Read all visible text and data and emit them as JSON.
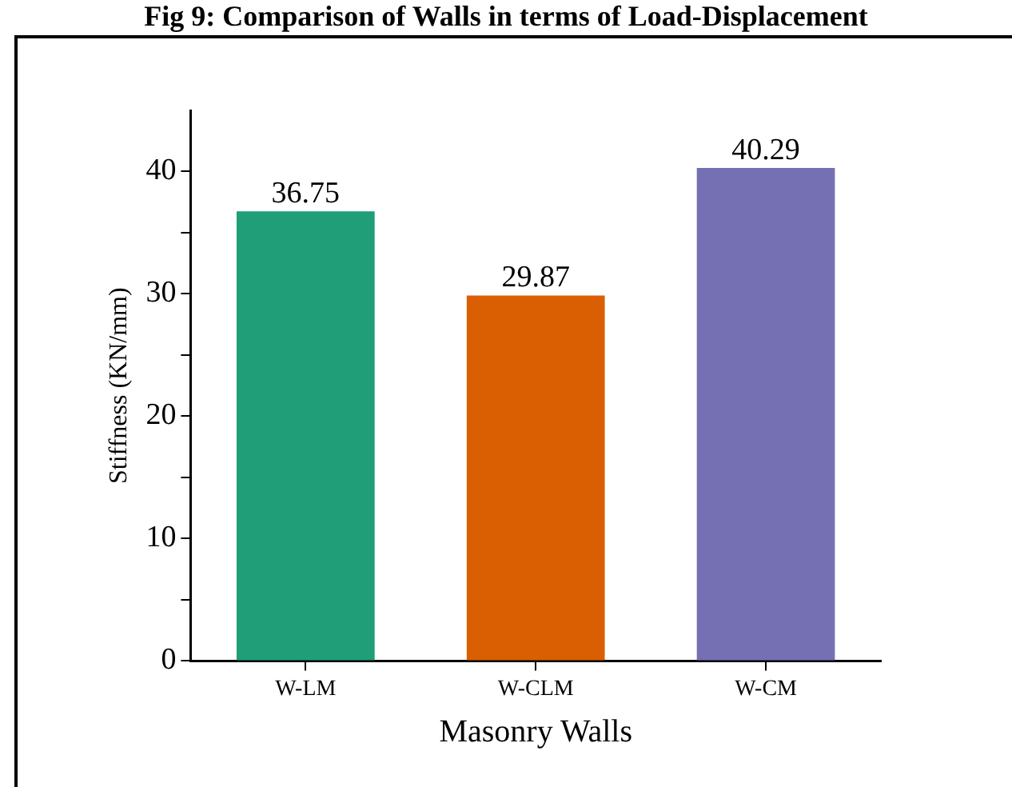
{
  "chart_data": {
    "type": "bar",
    "title": "Fig 9: Comparison of Walls in terms of Load-Displacement",
    "xlabel": "Masonry Walls",
    "ylabel": "Stiffness (KN/mm)",
    "categories": [
      "W-LM",
      "W-CLM",
      "W-CM"
    ],
    "values": [
      36.75,
      29.87,
      40.29
    ],
    "colors": [
      "#1f9e77",
      "#d95f02",
      "#7570b3"
    ],
    "ylim": [
      0,
      45
    ],
    "yticks": [
      0,
      {
        "value": 5,
        "label": null
      },
      10,
      {
        "value": 15,
        "label": null
      },
      20,
      {
        "value": 25,
        "label": null
      },
      30,
      {
        "value": 35,
        "label": null
      },
      40
    ],
    "data_labels": true,
    "grid": false,
    "legend": false
  }
}
